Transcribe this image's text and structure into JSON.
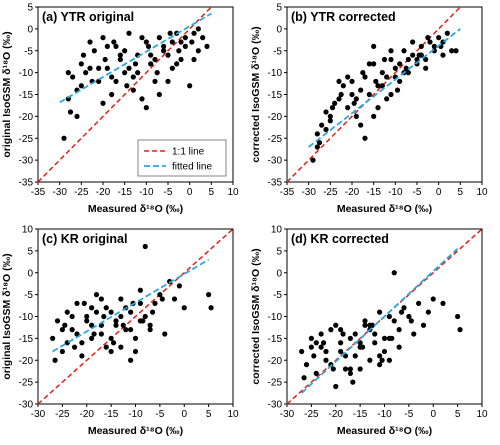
{
  "chart_data": [
    {
      "type": "scatter",
      "title": "(a) YTR original",
      "xlabel": "Measured δ¹⁸O (‰)",
      "ylabel": "original IsoGSM δ¹⁸O (‰)",
      "xlim": [
        -35,
        10
      ],
      "ylim": [
        -35,
        5
      ],
      "xticks": [
        -35,
        -30,
        -25,
        -20,
        -15,
        -10,
        -5,
        0,
        5,
        10
      ],
      "yticks": [
        -35,
        -30,
        -25,
        -20,
        -15,
        -10,
        -5,
        0,
        5
      ],
      "one_to_one": true,
      "fit": {
        "x": [
          -30,
          5
        ],
        "y": [
          -16.8,
          3.5
        ]
      },
      "legend": {
        "entries": [
          "1:1 line",
          "fitted line"
        ],
        "placement": "bottom-right"
      },
      "points": {
        "x": [
          -29,
          -28,
          -27,
          -26,
          -25,
          -24,
          -23,
          -22,
          -21,
          -20,
          -19,
          -18,
          -17,
          -16,
          -15,
          -14,
          -13,
          -12,
          -11,
          -10,
          -9,
          -8,
          -7,
          -6,
          -5,
          -4,
          -3,
          -2,
          -1,
          0,
          1,
          2,
          3,
          -27.5,
          -24.5,
          -22.5,
          -19.5,
          -17.5,
          -14.5,
          -12.5,
          -9.5,
          -7.5,
          -4.5,
          -2.5,
          0.5,
          -21,
          -18,
          -16,
          -13,
          -11,
          -8,
          -6,
          -3,
          -26,
          -23,
          -20,
          -15,
          -10,
          -5,
          -1,
          2,
          -28,
          -19,
          -14,
          -9,
          -4,
          1,
          4,
          -25,
          -12,
          -7,
          -2,
          -17
        ],
        "y": [
          -25,
          -16,
          -11,
          -14,
          -8,
          -10,
          -3,
          -5,
          -12,
          -2,
          -9,
          -15,
          -4,
          -7,
          -10,
          -1,
          -11,
          -6,
          -16,
          -3,
          -8,
          -12,
          -2,
          -5,
          -6,
          -9,
          -1,
          -3,
          -4,
          -13,
          -7,
          0,
          -2,
          -19,
          -6,
          -12,
          -7,
          -3,
          -13,
          -8,
          -4,
          -10,
          -1,
          -5,
          -3,
          -9,
          -11,
          -6,
          -14,
          -2,
          -7,
          -4,
          -8,
          -20,
          -9,
          -17,
          -5,
          -18,
          -12,
          -2,
          -5,
          -10,
          -4,
          -9,
          -6,
          -3,
          -1,
          -4,
          -13,
          -10,
          -15,
          -7,
          -12
        ]
      }
    },
    {
      "type": "scatter",
      "title": "(b) YTR corrected",
      "xlabel": "Measured δ¹⁸O (‰)",
      "ylabel": "corrected IsoGSM δ¹⁸O (‰)",
      "xlim": [
        -35,
        10
      ],
      "ylim": [
        -35,
        5
      ],
      "xticks": [
        -35,
        -30,
        -25,
        -20,
        -15,
        -10,
        -5,
        0,
        5,
        10
      ],
      "yticks": [
        -35,
        -30,
        -25,
        -20,
        -15,
        -10,
        -5,
        0,
        5
      ],
      "one_to_one": true,
      "fit": {
        "x": [
          -30,
          5
        ],
        "y": [
          -27,
          0
        ]
      },
      "points": {
        "x": [
          -29,
          -28,
          -27,
          -26,
          -25,
          -24,
          -23,
          -22,
          -21,
          -20,
          -19,
          -18,
          -17,
          -16,
          -15,
          -14,
          -13,
          -12,
          -11,
          -10,
          -9,
          -8,
          -7,
          -6,
          -5,
          -4,
          -3,
          -2,
          -1,
          0,
          1,
          2,
          -27.5,
          -24.5,
          -22.5,
          -19.5,
          -17.5,
          -14.5,
          -12.5,
          -9.5,
          -7.5,
          -4.5,
          -2.5,
          0.5,
          -21,
          -18,
          -16,
          -13,
          -11,
          -8,
          -6,
          -3,
          -26,
          -23,
          -20,
          -15,
          -10,
          -5,
          -1,
          3,
          -28,
          -19,
          -14,
          -9,
          -4,
          1,
          4,
          -25,
          -12,
          -7,
          -17,
          -11,
          -15
        ],
        "y": [
          -30,
          -24,
          -22,
          -19,
          -21,
          -17,
          -16,
          -13,
          -18,
          -12,
          -20,
          -14,
          -11,
          -15,
          -8,
          -13,
          -10,
          -16,
          -7,
          -9,
          -12,
          -5,
          -10,
          -6,
          -8,
          -4,
          -7,
          -3,
          -5,
          -2,
          -6,
          -1,
          -26,
          -18,
          -15,
          -17,
          -10,
          -12,
          -7,
          -14,
          -9,
          -6,
          -2,
          -4,
          -11,
          -22,
          -8,
          -13,
          -5,
          -10,
          -3,
          -9,
          -23,
          -12,
          -15,
          -20,
          -11,
          -7,
          -4,
          -5,
          -27,
          -16,
          -18,
          -8,
          -6,
          -3,
          -5,
          -20,
          -11,
          -7,
          -25,
          -15,
          -4
        ]
      }
    },
    {
      "type": "scatter",
      "title": "(c) KR original",
      "xlabel": "Measured δ¹⁸O (‰)",
      "ylabel": "original IsoGSM δ¹⁸O (‰)",
      "xlim": [
        -30,
        10
      ],
      "ylim": [
        -30,
        10
      ],
      "xticks": [
        -30,
        -25,
        -20,
        -15,
        -10,
        -5,
        0,
        5,
        10
      ],
      "yticks": [
        -30,
        -25,
        -20,
        -15,
        -10,
        -5,
        0,
        5,
        10
      ],
      "one_to_one": true,
      "fit": {
        "x": [
          -27,
          5
        ],
        "y": [
          -18,
          3
        ]
      },
      "points": {
        "x": [
          -27,
          -26,
          -25,
          -24,
          -23,
          -22,
          -21,
          -20,
          -19,
          -18,
          -17,
          -16,
          -15,
          -14,
          -13,
          -12,
          -11,
          -10,
          -9,
          -8,
          -7,
          -6,
          -5,
          -4,
          -3,
          -2,
          -1,
          0,
          5,
          5.5,
          -26.5,
          -24.5,
          -22.5,
          -20.5,
          -18.5,
          -16.5,
          -14.5,
          -12.5,
          -10.5,
          -8.5,
          -6.5,
          -4.5,
          -25,
          -23,
          -21,
          -19,
          -17,
          -15,
          -13,
          -11,
          -9,
          -7,
          -20,
          -16,
          -12,
          -8,
          -24,
          -18,
          -14,
          -10,
          -22,
          -17,
          -13,
          -9,
          -19,
          -15,
          -11
        ],
        "y": [
          -15,
          -11,
          -18,
          -9,
          -13,
          -7,
          -16,
          -10,
          -12,
          -5,
          -14,
          -8,
          -18,
          -11,
          -6,
          -13,
          -9,
          -15,
          -4,
          -10,
          -12,
          -7,
          -5,
          -14,
          -2,
          -6,
          -3,
          -8,
          -5,
          -8,
          -20,
          -12,
          -17,
          -7,
          -14,
          -10,
          -16,
          -12,
          -7,
          -11,
          -9,
          -6,
          -13,
          -10,
          -19,
          -8,
          -12,
          -15,
          -10,
          -20,
          -7,
          -13,
          -11,
          -17,
          -8,
          6,
          -16,
          -9,
          -12,
          -18,
          -14,
          -6,
          -17,
          -11,
          -15,
          -9,
          -13
        ]
      }
    },
    {
      "type": "scatter",
      "title": "(d) KR corrected",
      "xlabel": "Measured δ¹⁸O (‰)",
      "ylabel": "corrected IsoGSM δ¹⁸O (‰)",
      "xlim": [
        -30,
        10
      ],
      "ylim": [
        -30,
        10
      ],
      "xticks": [
        -30,
        -25,
        -20,
        -15,
        -10,
        -5,
        0,
        5,
        10
      ],
      "yticks": [
        -30,
        -25,
        -20,
        -15,
        -10,
        -5,
        0,
        5,
        10
      ],
      "one_to_one": true,
      "fit": {
        "x": [
          -27,
          5
        ],
        "y": [
          -27.5,
          5.5
        ]
      },
      "points": {
        "x": [
          -27,
          -26,
          -25,
          -24,
          -23,
          -22,
          -21,
          -20,
          -19,
          -18,
          -17,
          -16,
          -15,
          -14,
          -13,
          -12,
          -11,
          -10,
          -9,
          -8,
          -7,
          -6,
          -5,
          -4,
          -3,
          -2,
          -1,
          0,
          2,
          5,
          5.5,
          -26.5,
          -24.5,
          -22.5,
          -20.5,
          -18.5,
          -16.5,
          -14.5,
          -12.5,
          -10.5,
          -8.5,
          -6.5,
          -4.5,
          -25,
          -23,
          -21,
          -19,
          -17,
          -15,
          -13,
          -11,
          -9,
          -7,
          -20,
          -16,
          -12,
          -8,
          -24,
          -18,
          -14,
          -10,
          -22,
          -17,
          -13,
          -9,
          -19,
          -15,
          -11
        ],
        "y": [
          -18,
          -21,
          -15,
          -23,
          -17,
          -20,
          -13,
          -26,
          -16,
          -19,
          -22,
          -14,
          -17,
          -12,
          -20,
          -16,
          -9,
          -18,
          -15,
          -11,
          -13,
          -8,
          -10,
          -14,
          -7,
          -12,
          -9,
          -6,
          -7,
          -10,
          -13,
          -24,
          -19,
          -16,
          -22,
          -14,
          -25,
          -17,
          -12,
          -20,
          -15,
          -9,
          -11,
          -17,
          -14,
          -21,
          -18,
          -15,
          -22,
          -13,
          -19,
          -10,
          -17,
          -12,
          -19,
          -14,
          0,
          -16,
          -22,
          -11,
          -15,
          -18,
          -23,
          -12,
          -20,
          -13,
          -16,
          -21
        ]
      }
    }
  ]
}
